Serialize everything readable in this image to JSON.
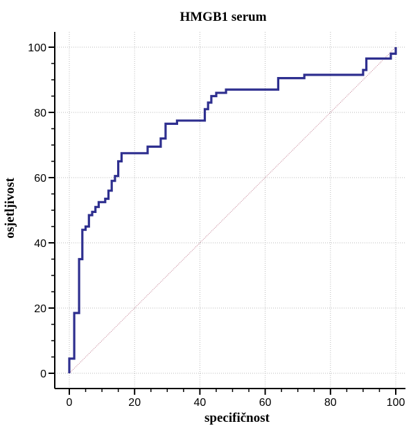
{
  "chart_data": {
    "type": "line",
    "title": "HMGB1 serum",
    "xlabel": "specifičnost",
    "ylabel": "osjetljivost",
    "xlim": [
      0,
      100
    ],
    "ylim": [
      0,
      100
    ],
    "x_ticks": [
      "0",
      "20",
      "40",
      "60",
      "80",
      "100"
    ],
    "y_ticks": [
      "0",
      "20",
      "40",
      "60",
      "80",
      "100"
    ],
    "grid": true,
    "series": [
      {
        "color": "#2e2f8f",
        "step": true,
        "x": [
          0,
          0,
          1.5,
          1.5,
          3,
          3,
          4,
          4,
          5,
          5,
          6,
          6,
          7,
          7,
          8,
          8,
          9,
          9,
          11,
          11,
          12,
          12,
          13,
          13,
          14,
          14,
          15,
          15,
          16,
          16,
          17,
          17,
          24,
          24,
          28,
          28,
          29.5,
          29.5,
          33,
          33,
          35,
          35,
          41.5,
          41.5,
          42.5,
          42.5,
          43.5,
          43.5,
          45,
          45,
          48,
          48,
          64,
          64,
          72,
          72,
          90,
          90,
          91,
          91,
          98.5,
          98.5,
          100,
          100
        ],
        "y": [
          0,
          4.5,
          4.5,
          18.5,
          18.5,
          35,
          35,
          44,
          44,
          45,
          45,
          48.5,
          48.5,
          49.5,
          49.5,
          51,
          51,
          52.5,
          52.5,
          53.5,
          53.5,
          56,
          56,
          59,
          59,
          60.5,
          60.5,
          65,
          65,
          67.5,
          67.5,
          67.5,
          67.5,
          69.5,
          69.5,
          72,
          72,
          76.5,
          76.5,
          77.5,
          77.5,
          77.5,
          77.5,
          81,
          81,
          83,
          83,
          85,
          85,
          86,
          86,
          87,
          87,
          90.5,
          90.5,
          91.5,
          91.5,
          93,
          93,
          96.5,
          96.5,
          98,
          98,
          100
        ]
      },
      {
        "color": "#c07a8e",
        "x": [
          0,
          100
        ],
        "y": [
          0,
          100
        ]
      }
    ]
  }
}
